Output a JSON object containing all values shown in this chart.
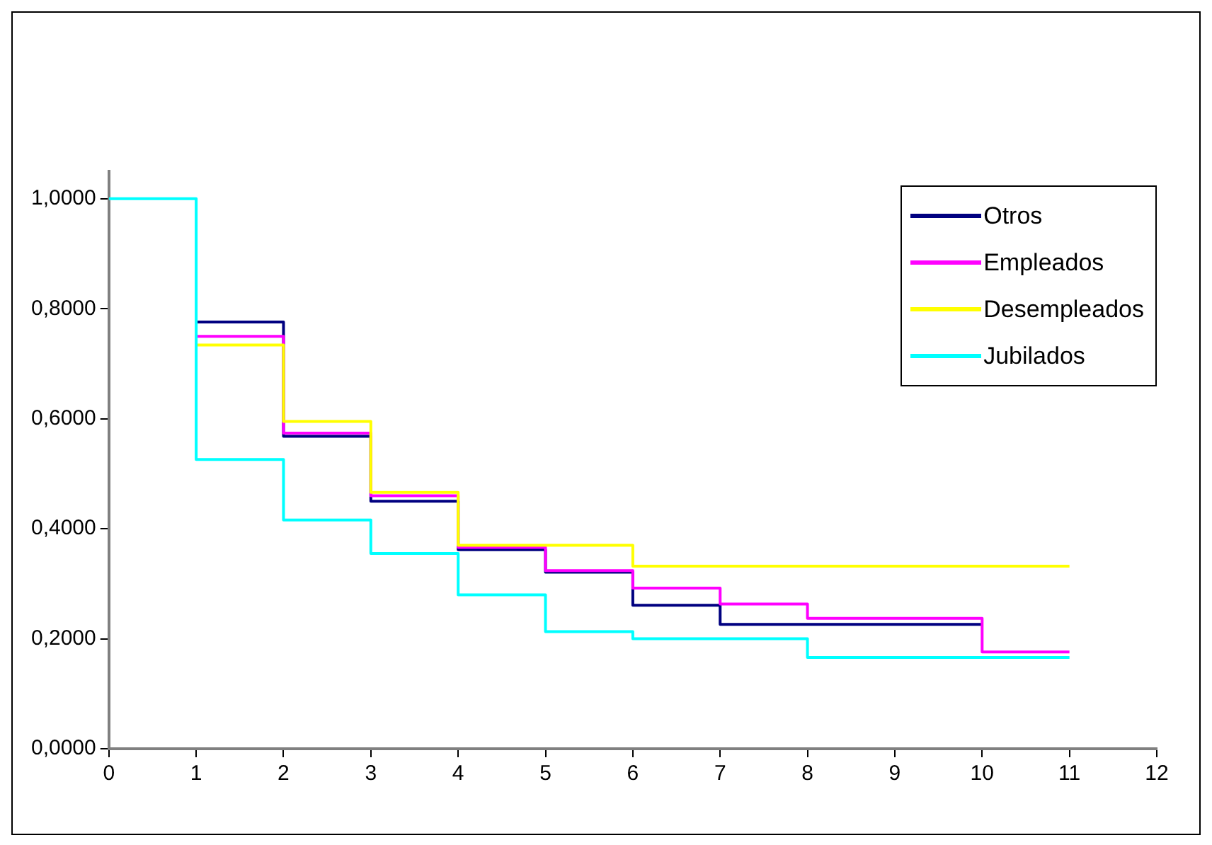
{
  "chart_data": {
    "type": "step",
    "xlim": [
      0,
      12
    ],
    "xticks": [
      0,
      1,
      2,
      3,
      4,
      5,
      6,
      7,
      8,
      9,
      10,
      11,
      12
    ],
    "ylim": [
      0,
      1.05
    ],
    "yticks": [
      {
        "value": 0,
        "label": "0,0000"
      },
      {
        "value": 0.2,
        "label": "0,2000"
      },
      {
        "value": 0.4,
        "label": "0,4000"
      },
      {
        "value": 0.6,
        "label": "0,6000"
      },
      {
        "value": 0.8,
        "label": "0,8000"
      },
      {
        "value": 1,
        "label": "1,0000"
      }
    ],
    "grid": false,
    "legend": "top right",
    "marker": "none",
    "line_style": "solid",
    "series": [
      {
        "name": "Otros",
        "color": "#000080",
        "x": [
          1,
          2,
          3,
          4,
          5,
          6,
          7,
          8,
          9,
          10
        ],
        "values": [
          0.776,
          0.568,
          0.45,
          0.362,
          0.321,
          0.261,
          0.226,
          0.226,
          0.226,
          0.226
        ]
      },
      {
        "name": "Empleados",
        "color": "#ff00ff",
        "x": [
          1,
          2,
          3,
          4,
          5,
          6,
          7,
          8,
          9,
          10,
          11
        ],
        "values": [
          0.75,
          0.574,
          0.46,
          0.366,
          0.324,
          0.292,
          0.263,
          0.237,
          0.237,
          0.176,
          0.176
        ]
      },
      {
        "name": "Desempleados",
        "color": "#ffff00",
        "x": [
          1,
          2,
          3,
          4,
          5,
          6,
          7,
          8,
          9,
          10,
          11
        ],
        "values": [
          0.734,
          0.595,
          0.466,
          0.37,
          0.37,
          0.332,
          0.332,
          0.332,
          0.332,
          0.332,
          0.332
        ]
      },
      {
        "name": "Jubilados",
        "color": "#00ffff",
        "x": [
          0,
          1,
          2,
          3,
          4,
          5,
          6,
          7,
          8,
          9,
          10,
          11
        ],
        "values": [
          1,
          0.526,
          0.416,
          0.355,
          0.28,
          0.213,
          0.2,
          0.2,
          0.166,
          0.166,
          0.166,
          0.166
        ]
      }
    ]
  }
}
